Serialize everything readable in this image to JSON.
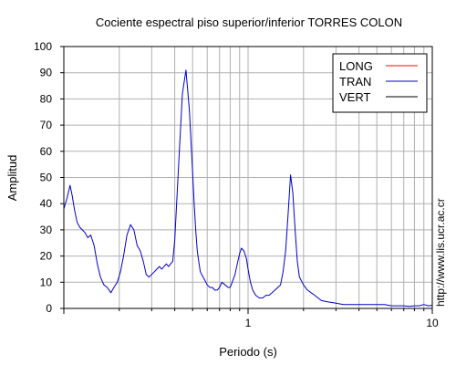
{
  "chart_data": {
    "type": "line",
    "title": "Cociente espectral piso superior/inferior  TORRES COLON",
    "xlabel": "Periodo (s)",
    "ylabel": "Amplitud",
    "x_scale": "log",
    "xlim": [
      0.1,
      10
    ],
    "ylim": [
      0,
      100
    ],
    "y_ticks": [
      0,
      10,
      20,
      30,
      40,
      50,
      60,
      70,
      80,
      90,
      100
    ],
    "x_tick_labels": [
      {
        "value": 1,
        "label": "1"
      },
      {
        "value": 10,
        "label": "10"
      }
    ],
    "grid": true,
    "legend_position": "top-right",
    "watermark": "http://www.lis.ucr.ac.cr",
    "series": [
      {
        "name": "LONG",
        "color": "#ff0000",
        "x": [],
        "y": []
      },
      {
        "name": "TRAN",
        "color": "#0000cc",
        "x": [
          0.1,
          0.104,
          0.108,
          0.111,
          0.114,
          0.118,
          0.122,
          0.126,
          0.13,
          0.135,
          0.14,
          0.146,
          0.152,
          0.158,
          0.165,
          0.172,
          0.18,
          0.187,
          0.195,
          0.203,
          0.211,
          0.22,
          0.23,
          0.24,
          0.25,
          0.26,
          0.27,
          0.28,
          0.29,
          0.3,
          0.31,
          0.32,
          0.33,
          0.34,
          0.35,
          0.36,
          0.37,
          0.38,
          0.39,
          0.4,
          0.42,
          0.44,
          0.46,
          0.48,
          0.5,
          0.51,
          0.52,
          0.53,
          0.54,
          0.55,
          0.56,
          0.57,
          0.58,
          0.59,
          0.6,
          0.62,
          0.64,
          0.66,
          0.68,
          0.7,
          0.72,
          0.75,
          0.78,
          0.8,
          0.82,
          0.85,
          0.88,
          0.9,
          0.92,
          0.95,
          0.98,
          1.0,
          1.03,
          1.06,
          1.1,
          1.15,
          1.2,
          1.25,
          1.3,
          1.35,
          1.4,
          1.45,
          1.5,
          1.55,
          1.6,
          1.65,
          1.7,
          1.75,
          1.8,
          1.85,
          1.9,
          2.0,
          2.1,
          2.2,
          2.3,
          2.5,
          2.7,
          3.0,
          3.3,
          3.6,
          4.0,
          4.5,
          5.0,
          5.5,
          6.0,
          6.5,
          7.0,
          7.5,
          8.0,
          8.5,
          9.0,
          9.5,
          10.0
        ],
        "y": [
          38,
          42,
          47,
          43,
          38,
          33,
          31,
          30,
          29,
          27,
          28,
          24,
          17,
          12,
          9,
          8,
          6,
          8,
          10,
          14,
          20,
          28,
          32,
          30,
          24,
          22,
          18,
          13,
          12,
          13,
          14,
          15,
          16,
          15,
          16,
          17,
          16,
          17,
          18,
          26,
          55,
          82,
          91,
          76,
          52,
          40,
          30,
          22,
          18,
          14,
          13,
          12,
          11,
          10,
          9,
          8,
          8,
          7,
          7,
          8,
          10,
          9,
          8,
          8,
          10,
          13,
          18,
          21,
          23,
          22,
          19,
          15,
          10,
          7,
          5,
          4,
          4,
          5,
          5,
          6,
          7,
          8,
          9,
          14,
          22,
          36,
          51,
          44,
          30,
          18,
          12,
          9,
          7,
          6,
          5,
          3,
          2.5,
          2,
          1.5,
          1.5,
          1.5,
          1.5,
          1.5,
          1.5,
          1,
          1,
          1,
          0.8,
          1,
          1,
          1.5,
          1,
          1.2
        ]
      },
      {
        "name": "VERT",
        "color": "#000000",
        "x": [],
        "y": []
      }
    ]
  }
}
